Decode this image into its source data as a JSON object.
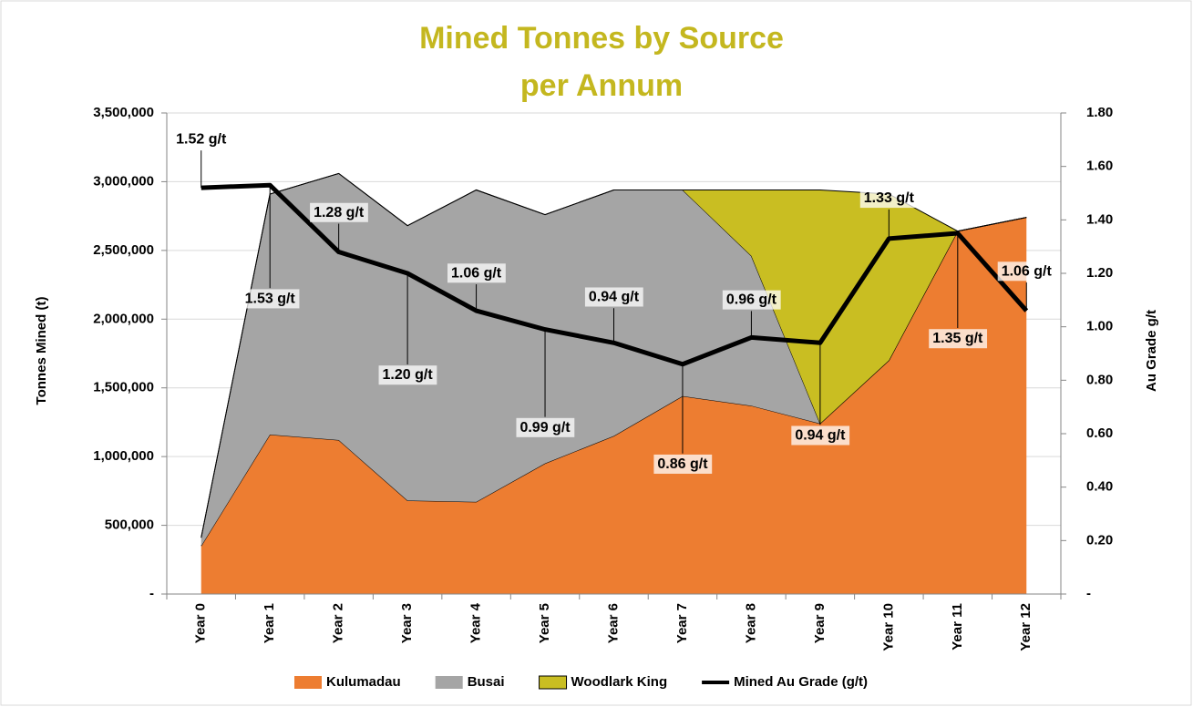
{
  "chart_data": {
    "type": "stacked-area-line",
    "title": [
      "Mined Tonnes by Source",
      "per Annum"
    ],
    "title_color": "#c4b71f",
    "y_label": "Tonnes Mined (t)",
    "y2_label": "Au Grade g/t",
    "categories": [
      "Year 0",
      "Year 1",
      "Year 2",
      "Year 3",
      "Year 4",
      "Year 5",
      "Year 6",
      "Year 7",
      "Year 8",
      "Year 9",
      "Year 10",
      "Year 11",
      "Year 12"
    ],
    "series": [
      {
        "name": "Kulumadau",
        "type": "area",
        "color": "#ed7d31",
        "values": [
          350000,
          1160000,
          1120000,
          680000,
          670000,
          950000,
          1150000,
          1440000,
          1370000,
          1240000,
          1700000,
          2640000,
          2740000
        ]
      },
      {
        "name": "Busai",
        "type": "area",
        "color": "#a5a5a5",
        "values": [
          60000,
          1750000,
          1940000,
          2000000,
          2270000,
          1810000,
          1790000,
          1500000,
          1090000,
          0,
          0,
          0,
          0
        ]
      },
      {
        "name": "Woodlark King",
        "type": "area",
        "color": "#c9be22",
        "values": [
          0,
          0,
          0,
          0,
          0,
          0,
          0,
          0,
          480000,
          1700000,
          1210000,
          0,
          0
        ]
      },
      {
        "name": "Mined Au Grade (g/t)",
        "type": "line",
        "axis": "y2",
        "color": "#000000",
        "values": [
          1.52,
          1.53,
          1.28,
          1.2,
          1.06,
          0.99,
          0.94,
          0.86,
          0.96,
          0.94,
          1.33,
          1.35,
          1.06
        ],
        "value_labels": [
          "1.52 g/t",
          "1.53 g/t",
          "1.28 g/t",
          "1.20 g/t",
          "1.06 g/t",
          "0.99 g/t",
          "0.94 g/t",
          "0.86 g/t",
          "0.96 g/t",
          "0.94 g/t",
          "1.33 g/t",
          "1.35 g/t",
          "1.06 g/t"
        ]
      }
    ],
    "ylim": [
      0,
      3500000
    ],
    "yticks": [
      {
        "value": 0,
        "label": "-"
      },
      {
        "value": 500000,
        "label": "500,000"
      },
      {
        "value": 1000000,
        "label": "1,000,000"
      },
      {
        "value": 1500000,
        "label": "1,500,000"
      },
      {
        "value": 2000000,
        "label": "2,000,000"
      },
      {
        "value": 2500000,
        "label": "2,500,000"
      },
      {
        "value": 3000000,
        "label": "3,000,000"
      },
      {
        "value": 3500000,
        "label": "3,500,000"
      }
    ],
    "y2lim": [
      0,
      1.8
    ],
    "y2ticks": [
      {
        "value": 0,
        "label": "-"
      },
      {
        "value": 0.2,
        "label": "0.20"
      },
      {
        "value": 0.4,
        "label": "0.40"
      },
      {
        "value": 0.6,
        "label": "0.60"
      },
      {
        "value": 0.8,
        "label": "0.80"
      },
      {
        "value": 1.0,
        "label": "1.00"
      },
      {
        "value": 1.2,
        "label": "1.20"
      },
      {
        "value": 1.4,
        "label": "1.40"
      },
      {
        "value": 1.6,
        "label": "1.60"
      },
      {
        "value": 1.8,
        "label": "1.80"
      }
    ],
    "grid": true,
    "legend": "bottom"
  }
}
